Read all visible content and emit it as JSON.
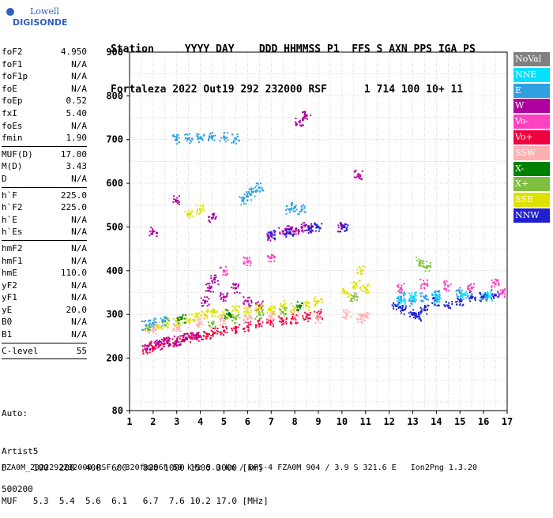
{
  "logo": {
    "line1": "Lowell",
    "line2": "DIGISONDE"
  },
  "header": {
    "labels": "Station     YYYY DAY    DDD HHMMSS P1  FFS S AXN PPS IGA PS",
    "values": "Fortaleza 2022 Out19 292 232000 RSF      1 714 100 10+ 11"
  },
  "params": {
    "g1": [
      [
        "foF2",
        "4.950"
      ],
      [
        "foF1",
        "N/A"
      ],
      [
        "foF1p",
        "N/A"
      ],
      [
        "foE",
        "N/A"
      ],
      [
        "foEp",
        "0.52"
      ],
      [
        "fxI",
        "5.40"
      ],
      [
        "foEs",
        "N/A"
      ],
      [
        "fmin",
        "1.90"
      ]
    ],
    "g2": [
      [
        "MUF(D)",
        "17.00"
      ],
      [
        "M(D)",
        "3.43"
      ],
      [
        "D",
        "N/A"
      ]
    ],
    "g3": [
      [
        "h`F",
        "225.0"
      ],
      [
        "h`F2",
        "225.0"
      ],
      [
        "h`E",
        "N/A"
      ],
      [
        "h`Es",
        "N/A"
      ]
    ],
    "g4": [
      [
        "hmF2",
        "N/A"
      ],
      [
        "hmF1",
        "N/A"
      ],
      [
        "hmE",
        "110.0"
      ],
      [
        "yF2",
        "N/A"
      ],
      [
        "yF1",
        "N/A"
      ],
      [
        "yE",
        "20.0"
      ],
      [
        "B0",
        "N/A"
      ],
      [
        "B1",
        "N/A"
      ]
    ],
    "g5": [
      [
        "C-level",
        "55"
      ]
    ]
  },
  "auto": {
    "l1": "Auto:",
    "l2": "Artist5",
    "l3": "500200"
  },
  "legend": [
    {
      "label": "NoVal",
      "color": "#808080"
    },
    {
      "label": "NNE",
      "color": "#00e0ff"
    },
    {
      "label": "E",
      "color": "#30a0e0"
    },
    {
      "label": "W",
      "color": "#b000a0"
    },
    {
      "label": "Vo-",
      "color": "#ff40c0"
    },
    {
      "label": "Vo+",
      "color": "#f00040"
    },
    {
      "label": "SSW",
      "color": "#ffb0b0"
    },
    {
      "label": "X-",
      "color": "#008000"
    },
    {
      "label": "X+",
      "color": "#80c040"
    },
    {
      "label": "SSE",
      "color": "#e0e000"
    },
    {
      "label": "NNW",
      "color": "#2020d0"
    }
  ],
  "chart_data": {
    "type": "scatter",
    "title": "",
    "xlabel": "",
    "ylabel": "",
    "xlim": [
      1,
      17
    ],
    "ylim": [
      80,
      900
    ],
    "x_ticks": [
      1,
      2,
      3,
      4,
      5,
      6,
      7,
      8,
      9,
      10,
      11,
      12,
      13,
      14,
      15,
      16,
      17
    ],
    "y_ticks": [
      80,
      200,
      300,
      400,
      500,
      600,
      700,
      800,
      900
    ],
    "grid": true,
    "series": [
      {
        "name": "Vo+",
        "color": "#f00040",
        "points": [
          [
            1.7,
            220
          ],
          [
            2.0,
            225
          ],
          [
            2.3,
            230
          ],
          [
            2.6,
            235
          ],
          [
            3.0,
            238
          ],
          [
            3.3,
            242
          ],
          [
            3.6,
            246
          ],
          [
            4.0,
            250
          ],
          [
            4.3,
            255
          ],
          [
            4.6,
            258
          ],
          [
            5.0,
            262
          ],
          [
            5.5,
            268
          ],
          [
            6.0,
            272
          ],
          [
            6.5,
            278
          ],
          [
            7.0,
            282
          ],
          [
            7.5,
            285
          ],
          [
            8.0,
            290
          ],
          [
            8.5,
            295
          ],
          [
            9.0,
            300
          ]
        ]
      },
      {
        "name": "W",
        "color": "#b000a0",
        "points": [
          [
            1.8,
            228
          ],
          [
            2.2,
            232
          ],
          [
            2.6,
            238
          ],
          [
            3.0,
            240
          ],
          [
            3.4,
            246
          ],
          [
            3.8,
            252
          ],
          [
            4.2,
            330
          ],
          [
            4.4,
            360
          ],
          [
            4.6,
            380
          ],
          [
            5.0,
            340
          ],
          [
            5.5,
            360
          ],
          [
            6.0,
            330
          ],
          [
            6.5,
            320
          ],
          [
            7.0,
            480
          ],
          [
            7.5,
            490
          ],
          [
            7.8,
            495
          ],
          [
            8.0,
            490
          ],
          [
            8.3,
            500
          ],
          [
            8.6,
            498
          ],
          [
            4.5,
            520
          ],
          [
            8.5,
            755
          ],
          [
            8.2,
            740
          ],
          [
            10.7,
            620
          ],
          [
            10.0,
            500
          ],
          [
            2.0,
            490
          ],
          [
            3.0,
            560
          ]
        ]
      },
      {
        "name": "SSE",
        "color": "#e0e000",
        "points": [
          [
            1.8,
            270
          ],
          [
            2.2,
            275
          ],
          [
            2.6,
            280
          ],
          [
            3.0,
            285
          ],
          [
            3.4,
            290
          ],
          [
            3.8,
            295
          ],
          [
            4.2,
            300
          ],
          [
            4.6,
            305
          ],
          [
            5.0,
            300
          ],
          [
            5.5,
            310
          ],
          [
            6.0,
            305
          ],
          [
            6.5,
            315
          ],
          [
            7.0,
            310
          ],
          [
            7.5,
            320
          ],
          [
            8.0,
            315
          ],
          [
            8.5,
            320
          ],
          [
            9.0,
            330
          ],
          [
            10.2,
            350
          ],
          [
            10.6,
            370
          ],
          [
            11.0,
            360
          ],
          [
            10.8,
            400
          ],
          [
            3.5,
            530
          ],
          [
            4.0,
            540
          ]
        ]
      },
      {
        "name": "E",
        "color": "#30a0e0",
        "points": [
          [
            1.7,
            275
          ],
          [
            2.0,
            280
          ],
          [
            2.5,
            285
          ],
          [
            3.0,
            700
          ],
          [
            3.5,
            702
          ],
          [
            4.0,
            704
          ],
          [
            4.5,
            705
          ],
          [
            5.0,
            705
          ],
          [
            5.5,
            702
          ],
          [
            6.0,
            570
          ],
          [
            6.2,
            580
          ],
          [
            6.5,
            590
          ],
          [
            5.8,
            560
          ],
          [
            7.8,
            540
          ],
          [
            8.0,
            545
          ],
          [
            8.3,
            540
          ],
          [
            12.5,
            340
          ],
          [
            13.0,
            330
          ],
          [
            13.5,
            340
          ],
          [
            14.0,
            345
          ],
          [
            15.0,
            350
          ],
          [
            16.0,
            345
          ]
        ]
      },
      {
        "name": "NNW",
        "color": "#2020d0",
        "points": [
          [
            12.3,
            320
          ],
          [
            12.6,
            310
          ],
          [
            13.0,
            300
          ],
          [
            13.2,
            295
          ],
          [
            13.5,
            310
          ],
          [
            14.0,
            330
          ],
          [
            14.5,
            320
          ],
          [
            15.0,
            330
          ],
          [
            15.5,
            340
          ],
          [
            16.0,
            340
          ],
          [
            16.5,
            345
          ],
          [
            7.0,
            485
          ],
          [
            7.8,
            488
          ],
          [
            8.6,
            495
          ],
          [
            9.0,
            500
          ],
          [
            10.1,
            500
          ]
        ]
      },
      {
        "name": "SSW",
        "color": "#ffb0b0",
        "points": [
          [
            2.0,
            265
          ],
          [
            3.0,
            270
          ],
          [
            4.0,
            280
          ],
          [
            5.0,
            285
          ],
          [
            6.0,
            290
          ],
          [
            7.0,
            295
          ],
          [
            8.0,
            298
          ],
          [
            9.0,
            290
          ],
          [
            10.2,
            300
          ],
          [
            10.8,
            290
          ],
          [
            11.0,
            295
          ]
        ]
      },
      {
        "name": "X+",
        "color": "#80c040",
        "points": [
          [
            4.5,
            280
          ],
          [
            5.5,
            290
          ],
          [
            6.5,
            300
          ],
          [
            7.5,
            305
          ],
          [
            10.5,
            340
          ],
          [
            13.3,
            420
          ],
          [
            13.6,
            410
          ]
        ]
      },
      {
        "name": "NNE",
        "color": "#00e0ff",
        "points": [
          [
            12.5,
            330
          ],
          [
            13.0,
            340
          ],
          [
            14.0,
            335
          ],
          [
            15.2,
            345
          ],
          [
            16.2,
            340
          ]
        ]
      },
      {
        "name": "Vo-",
        "color": "#ff40c0",
        "points": [
          [
            12.5,
            360
          ],
          [
            13.5,
            370
          ],
          [
            14.5,
            365
          ],
          [
            15.5,
            360
          ],
          [
            16.5,
            370
          ],
          [
            16.8,
            350
          ],
          [
            5.0,
            400
          ],
          [
            6.0,
            420
          ],
          [
            7.0,
            430
          ]
        ]
      },
      {
        "name": "X-",
        "color": "#008000",
        "points": [
          [
            3.2,
            290
          ],
          [
            5.2,
            300
          ],
          [
            8.2,
            320
          ]
        ]
      }
    ]
  },
  "footer": {
    "l1": "D     100  200  400  600   800 1000 1500 3000 [km]",
    "l2": "MUF   5.3  5.4  5.6  6.1   6.7  7.6 10.2 17.0 [MHz]",
    "l3": "FZA0M_2022292232000.RSF / 320fx256h 50 kHz 5.0 km / DPS-4 FZA0M 904 / 3.9 S 321.6 E   Ion2Png 1.3.20"
  }
}
